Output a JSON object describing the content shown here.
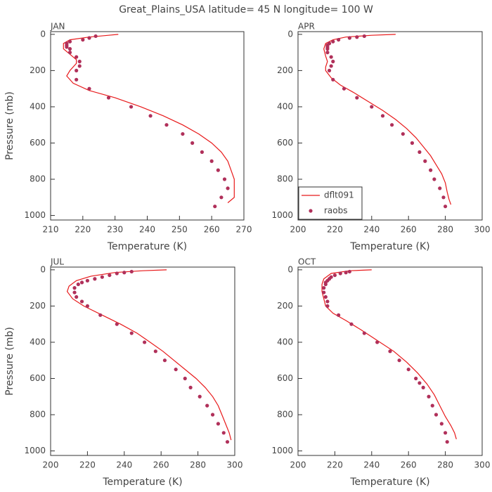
{
  "title": "Great_Plains_USA   latitude= 45 N longitude= 100 W",
  "chart_data": [
    {
      "type": "scatter",
      "panel_label": "JAN",
      "xlabel": "Temperature (K)",
      "ylabel": "Pressure (mb)",
      "xlim": [
        210,
        270
      ],
      "xticks": [
        210,
        220,
        230,
        240,
        250,
        260,
        270
      ],
      "ylim": [
        -15,
        1025
      ],
      "y_inverted": true,
      "yticks": [
        0,
        200,
        400,
        600,
        800,
        1000
      ],
      "series": [
        {
          "style": "line",
          "color": "#e8191a",
          "x": [
            231,
            228,
            222,
            216,
            214,
            214,
            216,
            218,
            218,
            216,
            215,
            217,
            222,
            230,
            238,
            245,
            251,
            256,
            260,
            263,
            265,
            266,
            267,
            267,
            267,
            265
          ],
          "values": [
            0,
            5,
            15,
            30,
            50,
            80,
            110,
            140,
            160,
            200,
            230,
            270,
            310,
            350,
            400,
            450,
            500,
            550,
            600,
            650,
            700,
            750,
            800,
            850,
            900,
            930
          ]
        },
        {
          "style": "markers",
          "color": "#b0305a",
          "x": [
            224,
            222,
            220,
            216,
            215,
            215,
            215,
            216,
            216,
            218,
            219,
            219,
            218,
            218,
            222,
            228,
            235,
            241,
            246,
            251,
            254,
            257,
            260,
            262,
            264,
            265,
            263,
            261
          ],
          "values": [
            10,
            20,
            30,
            40,
            50,
            60,
            70,
            80,
            100,
            125,
            150,
            175,
            200,
            250,
            300,
            350,
            400,
            450,
            500,
            550,
            600,
            650,
            700,
            750,
            800,
            850,
            900,
            950
          ]
        }
      ]
    },
    {
      "type": "scatter",
      "panel_label": "APR",
      "xlabel": "Temperature (K)",
      "xlim": [
        200,
        300
      ],
      "xticks": [
        200,
        220,
        240,
        260,
        280,
        300
      ],
      "ylim": [
        -15,
        1025
      ],
      "y_inverted": true,
      "yticks": [
        0,
        200,
        400,
        600,
        800,
        1000
      ],
      "legend": "lower left",
      "series": [
        {
          "name": "dflt091",
          "style": "line",
          "color": "#e8191a",
          "x": [
            253,
            240,
            226,
            219,
            215,
            214,
            215,
            216,
            215,
            215,
            218,
            223,
            230,
            238,
            246,
            253,
            259,
            264,
            268,
            272,
            275,
            278,
            280,
            281,
            282,
            283
          ],
          "values": [
            0,
            5,
            15,
            30,
            50,
            80,
            120,
            150,
            180,
            200,
            240,
            280,
            320,
            370,
            420,
            470,
            520,
            570,
            620,
            670,
            720,
            770,
            820,
            870,
            910,
            940
          ]
        },
        {
          "name": "raobs",
          "style": "markers",
          "color": "#b0305a",
          "x": [
            236,
            232,
            228,
            222,
            219,
            217,
            216,
            216,
            216,
            216,
            218,
            219,
            218,
            217,
            219,
            225,
            232,
            240,
            246,
            251,
            257,
            262,
            266,
            269,
            272,
            274,
            277,
            279,
            280
          ],
          "values": [
            10,
            15,
            20,
            30,
            40,
            50,
            60,
            70,
            80,
            100,
            125,
            150,
            175,
            200,
            250,
            300,
            350,
            400,
            450,
            500,
            550,
            600,
            650,
            700,
            750,
            800,
            850,
            900,
            950
          ]
        }
      ]
    },
    {
      "type": "scatter",
      "panel_label": "JUL",
      "xlabel": "Temperature (K)",
      "ylabel": "Pressure (mb)",
      "xlim": [
        200,
        300
      ],
      "xticks": [
        200,
        220,
        240,
        260,
        280,
        300
      ],
      "ylim": [
        -15,
        1025
      ],
      "y_inverted": true,
      "yticks": [
        0,
        200,
        400,
        600,
        800,
        1000
      ],
      "series": [
        {
          "style": "line",
          "color": "#e8191a",
          "x": [
            263,
            250,
            235,
            222,
            214,
            210,
            209,
            212,
            218,
            228,
            238,
            247,
            254,
            261,
            267,
            273,
            279,
            284,
            288,
            291,
            293,
            295,
            297,
            298
          ],
          "values": [
            0,
            5,
            15,
            35,
            60,
            90,
            120,
            160,
            200,
            250,
            300,
            350,
            400,
            450,
            500,
            550,
            600,
            650,
            700,
            750,
            800,
            850,
            900,
            940
          ]
        },
        {
          "style": "markers",
          "color": "#b0305a",
          "x": [
            244,
            240,
            236,
            232,
            228,
            224,
            220,
            217,
            215,
            213,
            213,
            214,
            217,
            220,
            227,
            236,
            244,
            251,
            257,
            262,
            268,
            273,
            276,
            281,
            285,
            288,
            291,
            294,
            296
          ],
          "values": [
            10,
            15,
            20,
            30,
            40,
            50,
            60,
            70,
            80,
            100,
            125,
            150,
            175,
            200,
            250,
            300,
            350,
            400,
            450,
            500,
            550,
            600,
            650,
            700,
            750,
            800,
            850,
            900,
            950
          ]
        }
      ]
    },
    {
      "type": "scatter",
      "panel_label": "OCT",
      "xlabel": "Temperature (K)",
      "xlim": [
        200,
        300
      ],
      "xticks": [
        200,
        220,
        240,
        260,
        280,
        300
      ],
      "ylim": [
        -15,
        1025
      ],
      "y_inverted": true,
      "yticks": [
        0,
        200,
        400,
        600,
        800,
        1000
      ],
      "series": [
        {
          "style": "line",
          "color": "#e8191a",
          "x": [
            240,
            228,
            218,
            214,
            213,
            213,
            214,
            215,
            219,
            226,
            234,
            243,
            252,
            259,
            265,
            270,
            274,
            277,
            280,
            283,
            285,
            286
          ],
          "values": [
            0,
            5,
            20,
            50,
            80,
            120,
            160,
            200,
            240,
            280,
            330,
            390,
            450,
            510,
            570,
            630,
            690,
            750,
            810,
            860,
            900,
            935
          ]
        },
        {
          "style": "markers",
          "color": "#b0305a",
          "x": [
            228,
            226,
            223,
            220,
            218,
            217,
            216,
            215,
            215,
            214,
            214,
            215,
            216,
            216,
            222,
            229,
            236,
            243,
            250,
            255,
            260,
            264,
            266,
            268,
            271,
            273,
            275,
            278,
            280,
            281
          ],
          "values": [
            10,
            15,
            20,
            30,
            40,
            50,
            60,
            70,
            80,
            100,
            125,
            150,
            175,
            200,
            250,
            300,
            350,
            400,
            450,
            500,
            550,
            600,
            625,
            650,
            700,
            750,
            800,
            850,
            900,
            950
          ]
        }
      ]
    }
  ]
}
